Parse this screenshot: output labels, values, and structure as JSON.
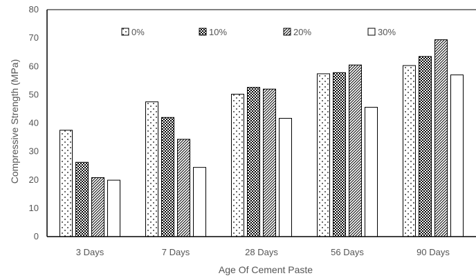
{
  "chart_data": {
    "type": "bar",
    "title": "",
    "xlabel": "Age Of Cement Paste",
    "ylabel": "Compressive Strength (MPa)",
    "ylim": [
      0,
      80
    ],
    "yticks": [
      0,
      10,
      20,
      30,
      40,
      50,
      60,
      70,
      80
    ],
    "categories": [
      "3 Days",
      "7 Days",
      "28 Days",
      "56 Days",
      "90 Days"
    ],
    "series": [
      {
        "name": "0%",
        "pattern": "dots",
        "values": [
          37.5,
          47.5,
          50.2,
          57.4,
          60.3
        ]
      },
      {
        "name": "10%",
        "pattern": "checker",
        "values": [
          26.2,
          42.0,
          52.6,
          57.8,
          63.5
        ]
      },
      {
        "name": "20%",
        "pattern": "diagonal",
        "values": [
          20.8,
          34.3,
          52.0,
          60.5,
          69.4
        ]
      },
      {
        "name": "30%",
        "pattern": "solid-white",
        "values": [
          19.9,
          24.4,
          41.7,
          45.6,
          57.0
        ]
      }
    ],
    "legend_position": "top",
    "grid": false,
    "colors": {
      "axis": "#000000",
      "bar_stroke": "#000000",
      "text": "#555555"
    }
  }
}
